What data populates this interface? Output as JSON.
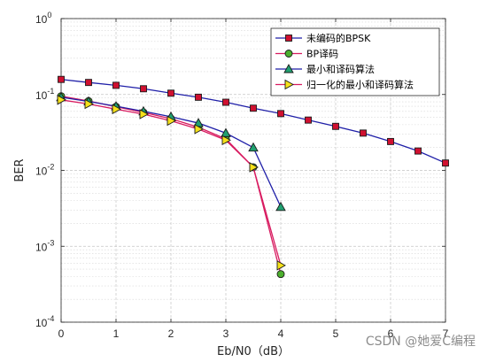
{
  "chart_data": {
    "type": "line",
    "xlabel": "Eb/N0（dB）",
    "ylabel": "BER",
    "xlim": [
      0,
      7
    ],
    "ylim": [
      0.0001,
      1
    ],
    "yscale": "log",
    "x_ticks": [
      "0",
      "1",
      "2",
      "3",
      "4",
      "5",
      "6",
      "7"
    ],
    "y_ticks": [
      {
        "base": "10",
        "exp": "0"
      },
      {
        "base": "10",
        "exp": "-1"
      },
      {
        "base": "10",
        "exp": "-2"
      },
      {
        "base": "10",
        "exp": "-3"
      },
      {
        "base": "10",
        "exp": "-4"
      }
    ],
    "grid": true,
    "legend_position": "top-right",
    "series": [
      {
        "name": "未编码的BPSK",
        "color": "#1f1fa8",
        "marker": "square",
        "marker_fill": "#d01030",
        "x": [
          0,
          0.5,
          1,
          1.5,
          2,
          2.5,
          3,
          3.5,
          4,
          4.5,
          5,
          5.5,
          6,
          6.5,
          7
        ],
        "y": [
          0.158,
          0.144,
          0.132,
          0.119,
          0.104,
          0.092,
          0.079,
          0.066,
          0.056,
          0.046,
          0.038,
          0.031,
          0.024,
          0.018,
          0.0125
        ]
      },
      {
        "name": "BP译码",
        "color": "#d81b60",
        "marker": "circle",
        "marker_fill": "#4caf2e",
        "x": [
          0,
          0.5,
          1,
          1.5,
          2,
          2.5,
          3,
          3.5,
          4
        ],
        "y": [
          0.095,
          0.082,
          0.069,
          0.058,
          0.048,
          0.037,
          0.026,
          0.011,
          0.00043
        ]
      },
      {
        "name": "最小和译码算法",
        "color": "#1f1fa8",
        "marker": "triangle-up",
        "marker_fill": "#20a070",
        "x": [
          0,
          0.5,
          1,
          1.5,
          2,
          2.5,
          3,
          3.5,
          4
        ],
        "y": [
          0.092,
          0.081,
          0.07,
          0.06,
          0.051,
          0.042,
          0.031,
          0.02,
          0.0033
        ]
      },
      {
        "name": "归一化的最小和译码算法",
        "color": "#d81b60",
        "marker": "triangle-right",
        "marker_fill": "#f5e11a",
        "x": [
          0,
          0.5,
          1,
          1.5,
          2,
          2.5,
          3,
          3.5,
          4
        ],
        "y": [
          0.085,
          0.075,
          0.064,
          0.055,
          0.045,
          0.035,
          0.025,
          0.011,
          0.00056
        ]
      }
    ]
  },
  "watermark": "CSDN @她爱C编程"
}
